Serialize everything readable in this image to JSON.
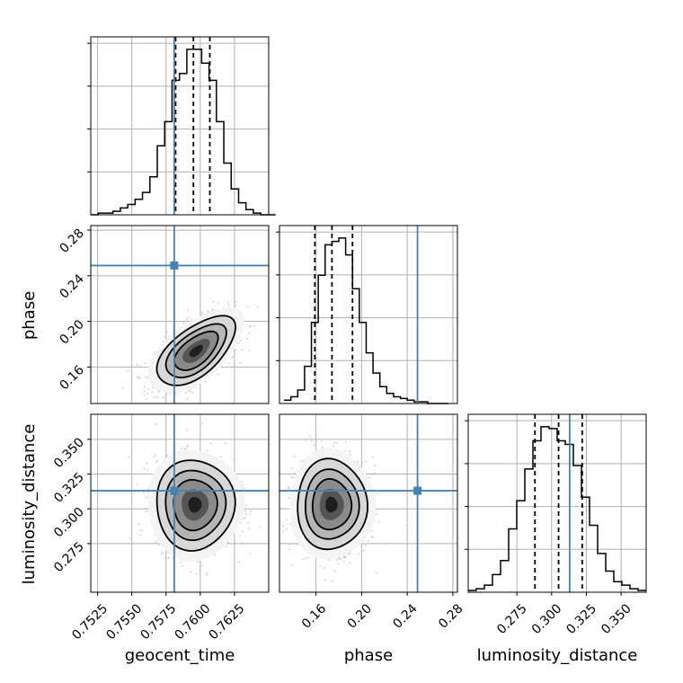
{
  "chart_data": {
    "type": "corner",
    "parameters": [
      "geocent_time",
      "phase",
      "luminosity_distance"
    ],
    "colors": {
      "truth": "#4682b4",
      "hist": "#000000",
      "grid": "#b0b0b0"
    },
    "truths": {
      "geocent_time": 0.7581,
      "phase": 0.249,
      "luminosity_distance": 0.313
    },
    "quantiles": {
      "geocent_time": [
        0.7582,
        0.7595,
        0.7607
      ],
      "phase": [
        0.159,
        0.174,
        0.192
      ],
      "luminosity_distance": [
        0.288,
        0.305,
        0.322
      ]
    },
    "ranges": {
      "geocent_time": [
        0.752,
        0.765
      ],
      "phase": [
        0.128,
        0.284
      ],
      "luminosity_distance": [
        0.24,
        0.368
      ]
    },
    "ticks": {
      "geocent_time": {
        "values": [
          0.7525,
          0.755,
          0.7575,
          0.76,
          0.7625
        ],
        "labels": [
          "0.7525",
          "0.7550",
          "0.7575",
          "0.7600",
          "0.7625"
        ]
      },
      "phase": {
        "values": [
          0.16,
          0.2,
          0.24,
          0.28
        ],
        "labels": [
          "0.16",
          "0.20",
          "0.24",
          "0.28"
        ]
      },
      "luminosity_distance": {
        "values": [
          0.275,
          0.3,
          0.325,
          0.35
        ],
        "labels": [
          "0.275",
          "0.300",
          "0.325",
          "0.350"
        ]
      }
    },
    "histograms": {
      "geocent_time": {
        "bins": [
          0.752,
          0.7655
        ],
        "counts": [
          0,
          1,
          1,
          2,
          4,
          6,
          9,
          13,
          22,
          40,
          54,
          78,
          82,
          96,
          96,
          88,
          78,
          54,
          30,
          15,
          7,
          3,
          1,
          0,
          0
        ]
      },
      "phase": {
        "bins": [
          0.132,
          0.276
        ],
        "counts": [
          2,
          4,
          8,
          22,
          48,
          76,
          94,
          96,
          98,
          88,
          68,
          48,
          30,
          18,
          10,
          6,
          4,
          3,
          2,
          1,
          1,
          0,
          0,
          0
        ]
      },
      "luminosity_distance": {
        "bins": [
          0.24,
          0.368
        ],
        "counts": [
          1,
          2,
          4,
          10,
          18,
          36,
          52,
          70,
          86,
          94,
          93,
          86,
          84,
          72,
          54,
          38,
          22,
          12,
          6,
          4,
          2,
          1
        ]
      }
    },
    "panels_2d": [
      {
        "x": "geocent_time",
        "y": "phase",
        "center": [
          0.7597,
          0.174
        ],
        "sigma": [
          0.0011,
          0.0117
        ],
        "rho": 0.6
      },
      {
        "x": "geocent_time",
        "y": "luminosity_distance",
        "center": [
          0.7596,
          0.303
        ],
        "sigma": [
          0.0011,
          0.0125
        ],
        "rho": 0.0
      },
      {
        "x": "phase",
        "y": "luminosity_distance",
        "center": [
          0.1735,
          0.303
        ],
        "sigma": [
          0.0118,
          0.0125
        ],
        "rho": 0.0
      }
    ],
    "grid": true,
    "xlabels": [
      "geocent_time",
      "phase",
      "luminosity_distance"
    ],
    "ylabels": [
      "",
      "phase",
      "luminosity_distance"
    ]
  }
}
